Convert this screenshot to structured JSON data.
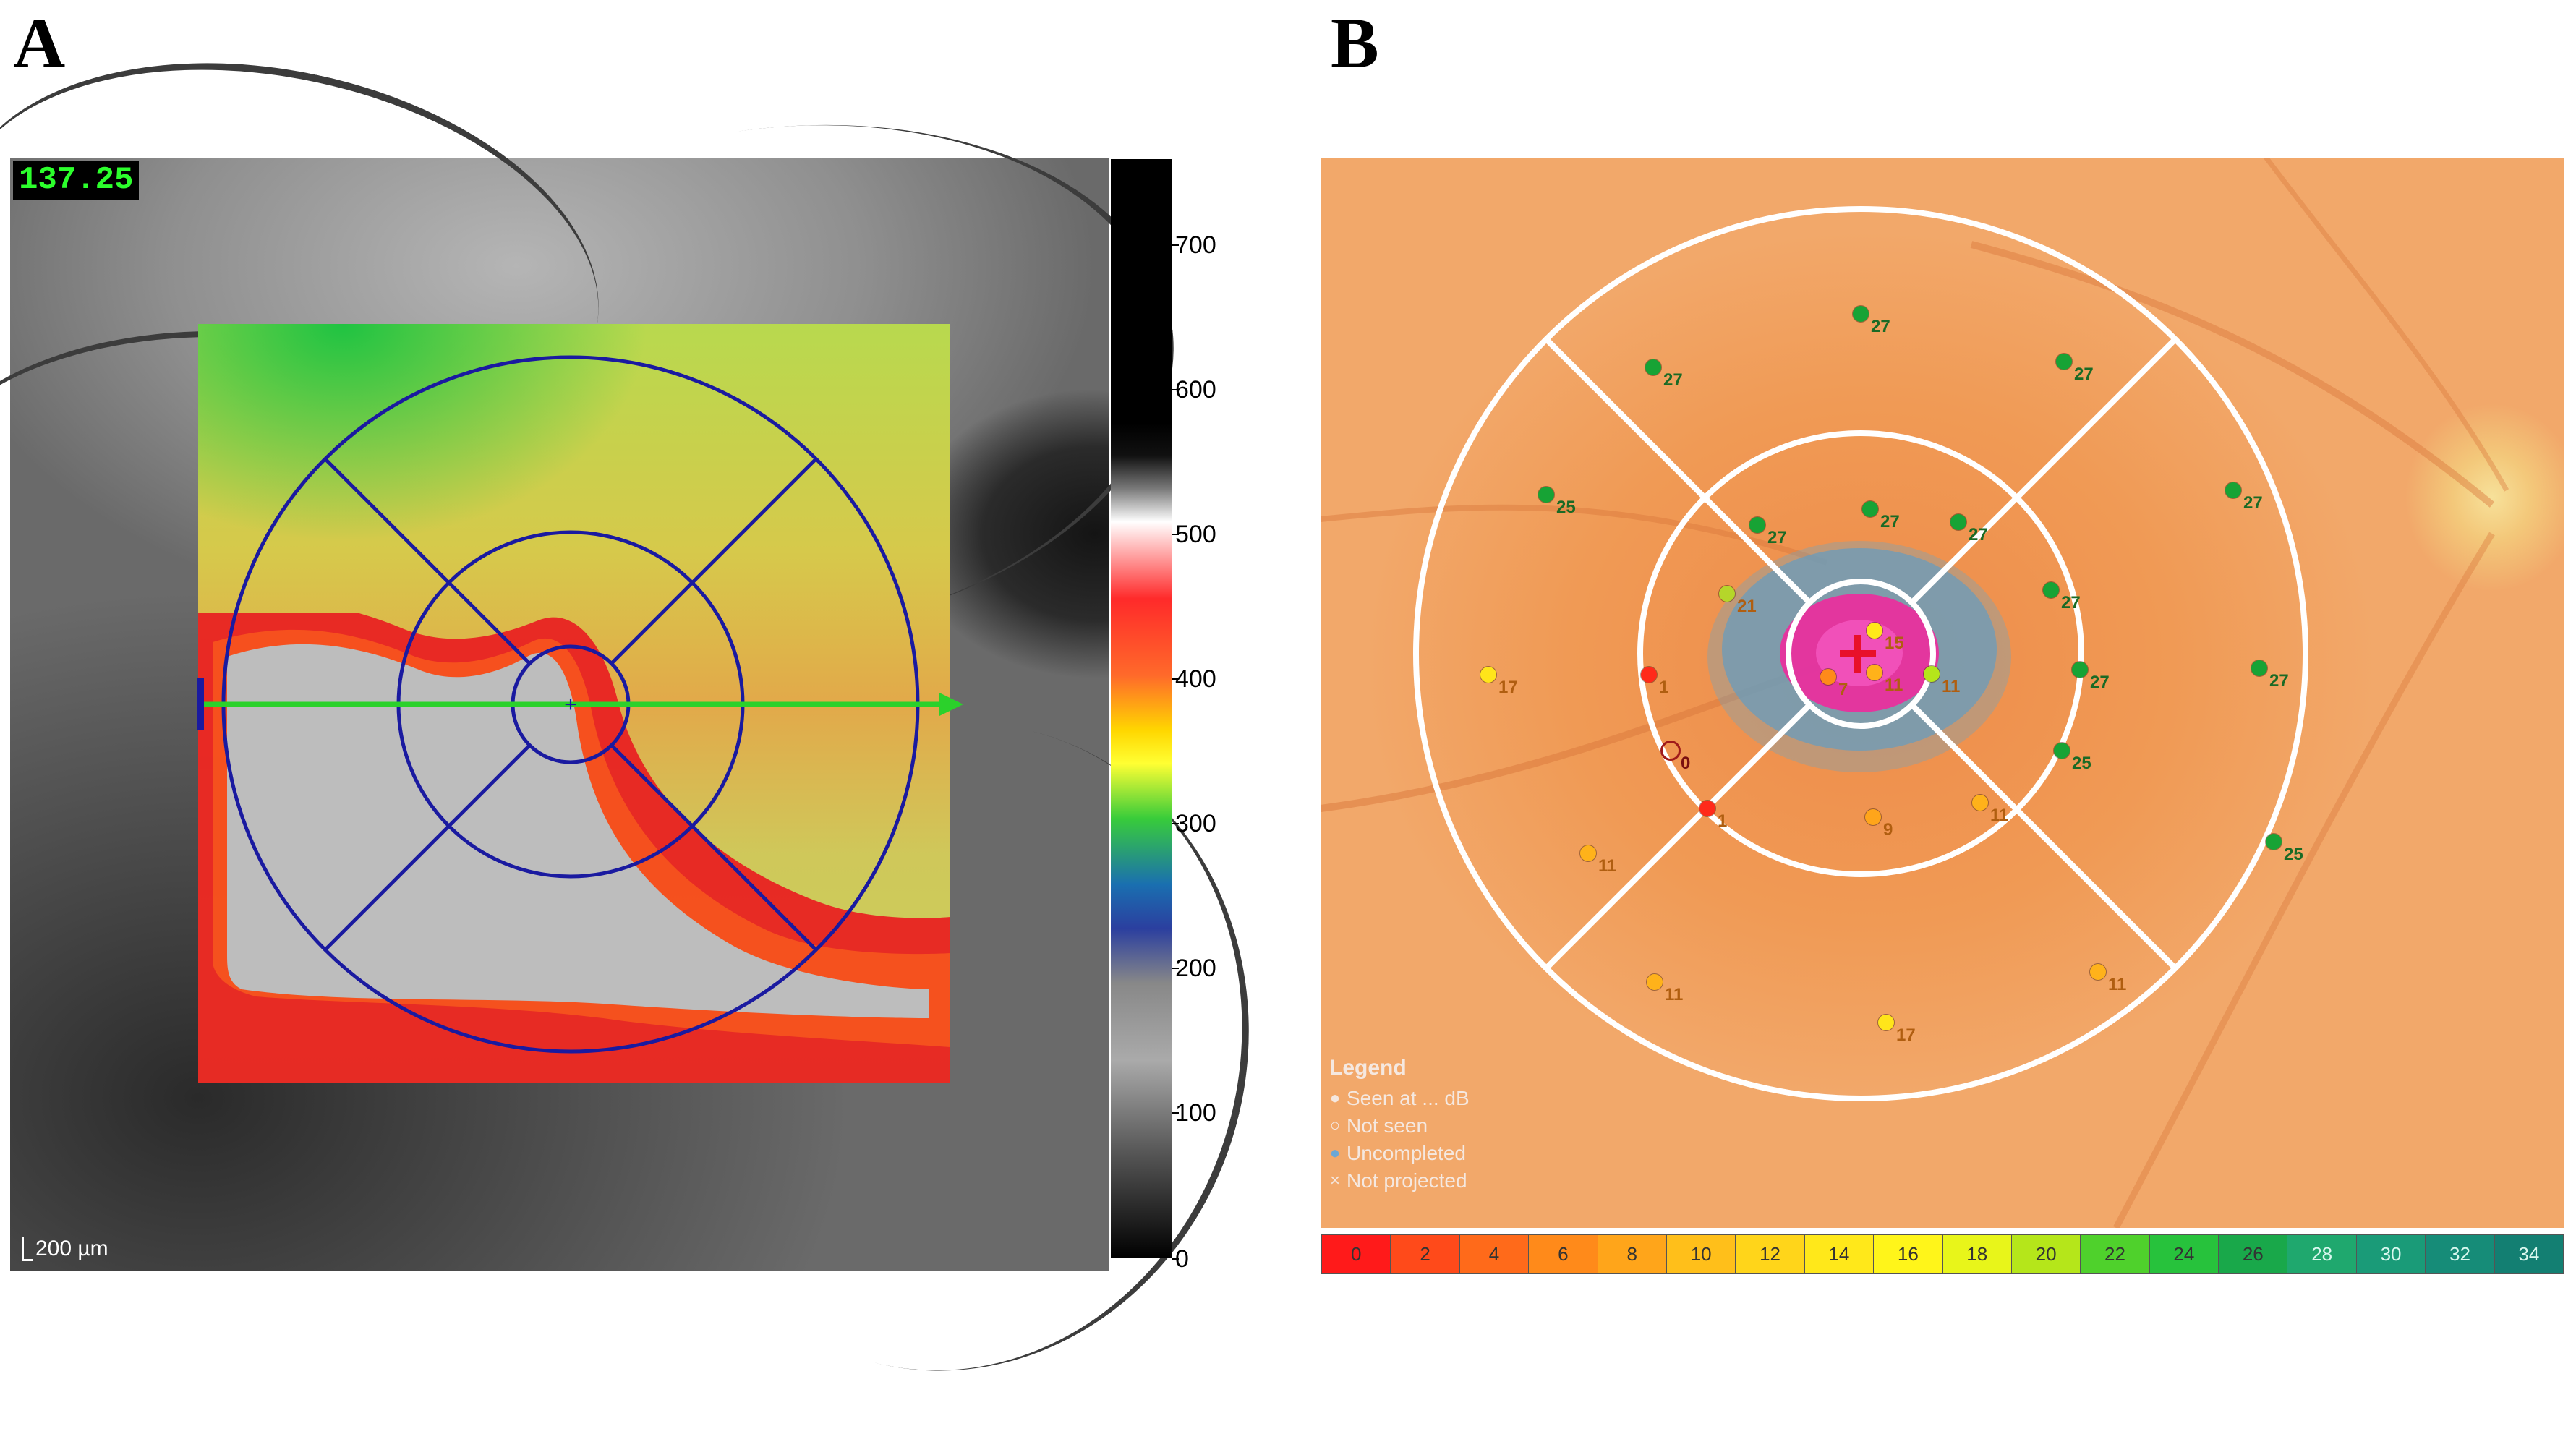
{
  "panel_labels": {
    "a": "A",
    "b": "B"
  },
  "panel_a": {
    "thickness_readout": "137.25",
    "scale_bar_label": "200 µm",
    "colorbar_ticks": [
      "700",
      "600",
      "500",
      "400",
      "300",
      "200",
      "100",
      "0"
    ]
  },
  "panel_b": {
    "legend": {
      "title": "Legend",
      "items": [
        {
          "symbol": "●",
          "label": "Seen at ... dB"
        },
        {
          "symbol": "○",
          "label": "Not seen"
        },
        {
          "symbol": "●",
          "label": "Uncompleted"
        },
        {
          "symbol": "×",
          "label": "Not projected"
        }
      ]
    },
    "scale": [
      {
        "label": "0",
        "color": "#ff1a1a"
      },
      {
        "label": "2",
        "color": "#ff4a1a"
      },
      {
        "label": "4",
        "color": "#ff6a1a"
      },
      {
        "label": "6",
        "color": "#ff8a1a"
      },
      {
        "label": "8",
        "color": "#ffa51a"
      },
      {
        "label": "10",
        "color": "#ffbf1a"
      },
      {
        "label": "12",
        "color": "#ffd51a"
      },
      {
        "label": "14",
        "color": "#ffe81a"
      },
      {
        "label": "16",
        "color": "#fff51a"
      },
      {
        "label": "18",
        "color": "#e8f51a"
      },
      {
        "label": "20",
        "color": "#b5e61a"
      },
      {
        "label": "22",
        "color": "#4fd12c"
      },
      {
        "label": "24",
        "color": "#27c23c"
      },
      {
        "label": "26",
        "color": "#19a84a"
      },
      {
        "label": "28",
        "color": "#1fa86e"
      },
      {
        "label": "30",
        "color": "#1a9b78"
      },
      {
        "label": "32",
        "color": "#168c78"
      },
      {
        "label": "34",
        "color": "#137f72"
      }
    ],
    "stimuli": [
      {
        "value": "27",
        "color": "#17a335"
      },
      {
        "value": "27",
        "color": "#17a335"
      },
      {
        "value": "27",
        "color": "#17a335"
      },
      {
        "value": "25",
        "color": "#17a335"
      },
      {
        "value": "27",
        "color": "#17a335"
      },
      {
        "value": "27",
        "color": "#17a335"
      },
      {
        "value": "27",
        "color": "#17a335"
      },
      {
        "value": "27",
        "color": "#17a335"
      },
      {
        "value": "27",
        "color": "#17a335"
      },
      {
        "value": "21",
        "color": "#b5d62a"
      },
      {
        "value": "17",
        "color": "#ffe51a"
      },
      {
        "value": "1",
        "color": "#ff2a1a"
      },
      {
        "value": "27",
        "color": "#17a335"
      },
      {
        "value": "27",
        "color": "#17a335"
      },
      {
        "value": "25",
        "color": "#17a335"
      },
      {
        "value": "0",
        "color": "none"
      },
      {
        "value": "1",
        "color": "#ff2a1a"
      },
      {
        "value": "9",
        "color": "#ffa51a"
      },
      {
        "value": "11",
        "color": "#ffb21a"
      },
      {
        "value": "11",
        "color": "#ffb21a"
      },
      {
        "value": "25",
        "color": "#17a335"
      },
      {
        "value": "11",
        "color": "#ffb21a"
      },
      {
        "value": "17",
        "color": "#ffe51a"
      },
      {
        "value": "11",
        "color": "#ffb21a"
      },
      {
        "value": "7",
        "color": "#ff8a1a"
      },
      {
        "value": "11",
        "color": "#ffb21a"
      },
      {
        "value": "11",
        "color": "#b5e61a"
      },
      {
        "value": "15",
        "color": "#ffe81a"
      }
    ]
  }
}
